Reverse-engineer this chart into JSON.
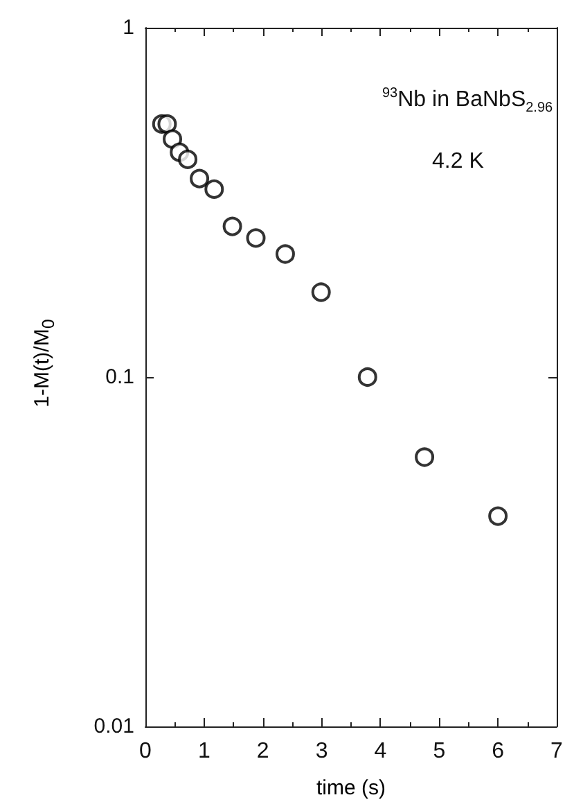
{
  "chart_data": {
    "type": "scatter",
    "xlabel": "time (s)",
    "ylabel": "1-M(t)/M$_{0}$",
    "log": "y",
    "annotations": [
      "$^{93}$Nb in BaNbS$_{2.96}$",
      "4.2 K"
    ],
    "x": [
      0.28,
      0.37,
      0.46,
      0.58,
      0.72,
      0.92,
      1.17,
      1.48,
      1.88,
      2.38,
      2.99,
      3.78,
      4.75,
      6.0
    ],
    "series": [
      {
        "color": "#000000",
        "values": [
          0.53,
          0.53,
          0.48,
          0.44,
          0.42,
          0.37,
          0.345,
          0.27,
          0.25,
          0.225,
          0.175,
          0.1,
          0.059,
          0.04
        ]
      }
    ],
    "xlim": [
      0,
      7
    ],
    "xticks": [
      0,
      1,
      2,
      3,
      4,
      5,
      6,
      7
    ],
    "ylim": [
      0.01,
      1
    ],
    "yticks": [
      0.01,
      0.1,
      1
    ],
    "grid": false,
    "marker": "circle"
  }
}
